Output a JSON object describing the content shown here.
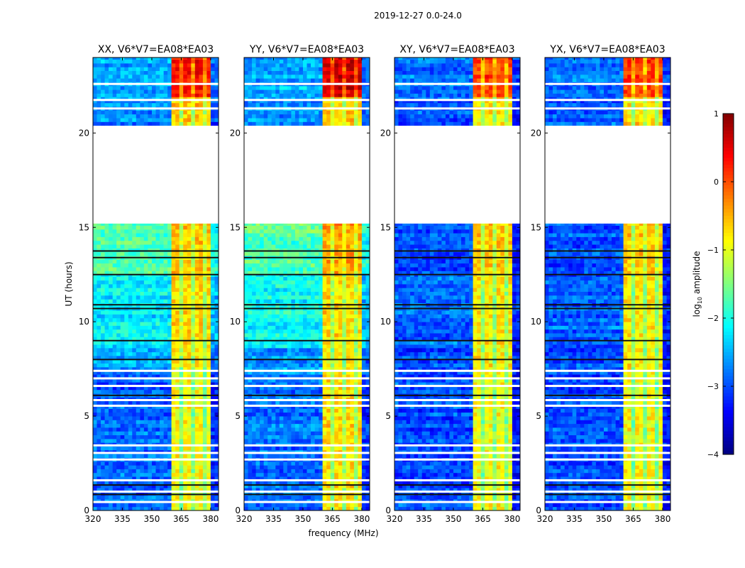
{
  "chart_data": {
    "type": "heatmap",
    "title": "2019-12-27 0.0-24.0",
    "xlabel": "frequency (MHz)",
    "ylabel": "UT (hours)",
    "xlim": [
      320,
      384
    ],
    "ylim": [
      0,
      24
    ],
    "xticks": [
      320,
      335,
      350,
      365,
      380
    ],
    "yticks": [
      0,
      5,
      10,
      15,
      20
    ],
    "colorbar": {
      "label_prefix": "log",
      "label_sub": "10",
      "label_suffix": " amplitude",
      "range": [
        -4,
        1
      ],
      "ticks": [
        1,
        0,
        -1,
        -2,
        -3,
        -4
      ],
      "colormap": "jet"
    },
    "rfi_band_mhz": [
      360,
      380
    ],
    "flagged_rows_hours": [
      0.45,
      1.0,
      1.6,
      2.7,
      3.05,
      3.45,
      5.55,
      5.85,
      6.6,
      7.0,
      7.4,
      21.3,
      21.75,
      22.6
    ],
    "dark_rows_hours": [
      0.85,
      1.35,
      6.1,
      8.0,
      9.0,
      10.7,
      10.9,
      12.5,
      13.4,
      13.75
    ],
    "panels": [
      {
        "title": "XX, V6*V7=EA08*EA03",
        "segments": [
          {
            "t": [
              21.9,
              24
            ],
            "bg": -2.6,
            "rfi": 0.3
          },
          {
            "t": [
              20.4,
              21.9
            ],
            "bg": -2.7,
            "rfi": -0.6
          },
          {
            "t": [
              15.2,
              20.4
            ],
            "bg": null,
            "rfi": null
          },
          {
            "t": [
              12.5,
              15.2
            ],
            "bg": -1.8,
            "rfi": -0.6
          },
          {
            "t": [
              8.6,
              12.5
            ],
            "bg": -2.2,
            "rfi": -0.7
          },
          {
            "t": [
              7.2,
              8.6
            ],
            "bg": -2.6,
            "rfi": -0.8
          },
          {
            "t": [
              0,
              7.2
            ],
            "bg": -2.9,
            "rfi": -0.9
          }
        ]
      },
      {
        "title": "YY, V6*V7=EA08*EA03",
        "segments": [
          {
            "t": [
              21.9,
              24
            ],
            "bg": -2.5,
            "rfi": 0.6
          },
          {
            "t": [
              20.4,
              21.9
            ],
            "bg": -2.6,
            "rfi": -0.6
          },
          {
            "t": [
              15.2,
              20.4
            ],
            "bg": null,
            "rfi": null
          },
          {
            "t": [
              12.5,
              15.2
            ],
            "bg": -1.7,
            "rfi": -0.4
          },
          {
            "t": [
              8.6,
              12.5
            ],
            "bg": -2.1,
            "rfi": -0.7
          },
          {
            "t": [
              7.2,
              8.6
            ],
            "bg": -2.6,
            "rfi": -0.8
          },
          {
            "t": [
              0,
              7.2
            ],
            "bg": -2.8,
            "rfi": -0.7
          }
        ]
      },
      {
        "title": "XY, V6*V7=EA08*EA03",
        "segments": [
          {
            "t": [
              21.9,
              24
            ],
            "bg": -2.8,
            "rfi": 0.1
          },
          {
            "t": [
              20.4,
              21.9
            ],
            "bg": -2.9,
            "rfi": -0.7
          },
          {
            "t": [
              15.2,
              20.4
            ],
            "bg": null,
            "rfi": null
          },
          {
            "t": [
              12.5,
              15.2
            ],
            "bg": -3.0,
            "rfi": -0.6
          },
          {
            "t": [
              8.6,
              12.5
            ],
            "bg": -2.9,
            "rfi": -0.8
          },
          {
            "t": [
              7.2,
              8.6
            ],
            "bg": -3.0,
            "rfi": -0.8
          },
          {
            "t": [
              0,
              7.2
            ],
            "bg": -3.0,
            "rfi": -0.9
          }
        ]
      },
      {
        "title": "YX, V6*V7=EA08*EA03",
        "segments": [
          {
            "t": [
              21.9,
              24
            ],
            "bg": -2.8,
            "rfi": 0.1
          },
          {
            "t": [
              20.4,
              21.9
            ],
            "bg": -2.9,
            "rfi": -0.7
          },
          {
            "t": [
              15.2,
              20.4
            ],
            "bg": null,
            "rfi": null
          },
          {
            "t": [
              12.5,
              15.2
            ],
            "bg": -3.0,
            "rfi": -0.6
          },
          {
            "t": [
              8.6,
              12.5
            ],
            "bg": -2.9,
            "rfi": -0.8
          },
          {
            "t": [
              7.2,
              8.6
            ],
            "bg": -3.0,
            "rfi": -0.8
          },
          {
            "t": [
              0,
              7.2
            ],
            "bg": -3.0,
            "rfi": -0.9
          }
        ]
      }
    ]
  }
}
